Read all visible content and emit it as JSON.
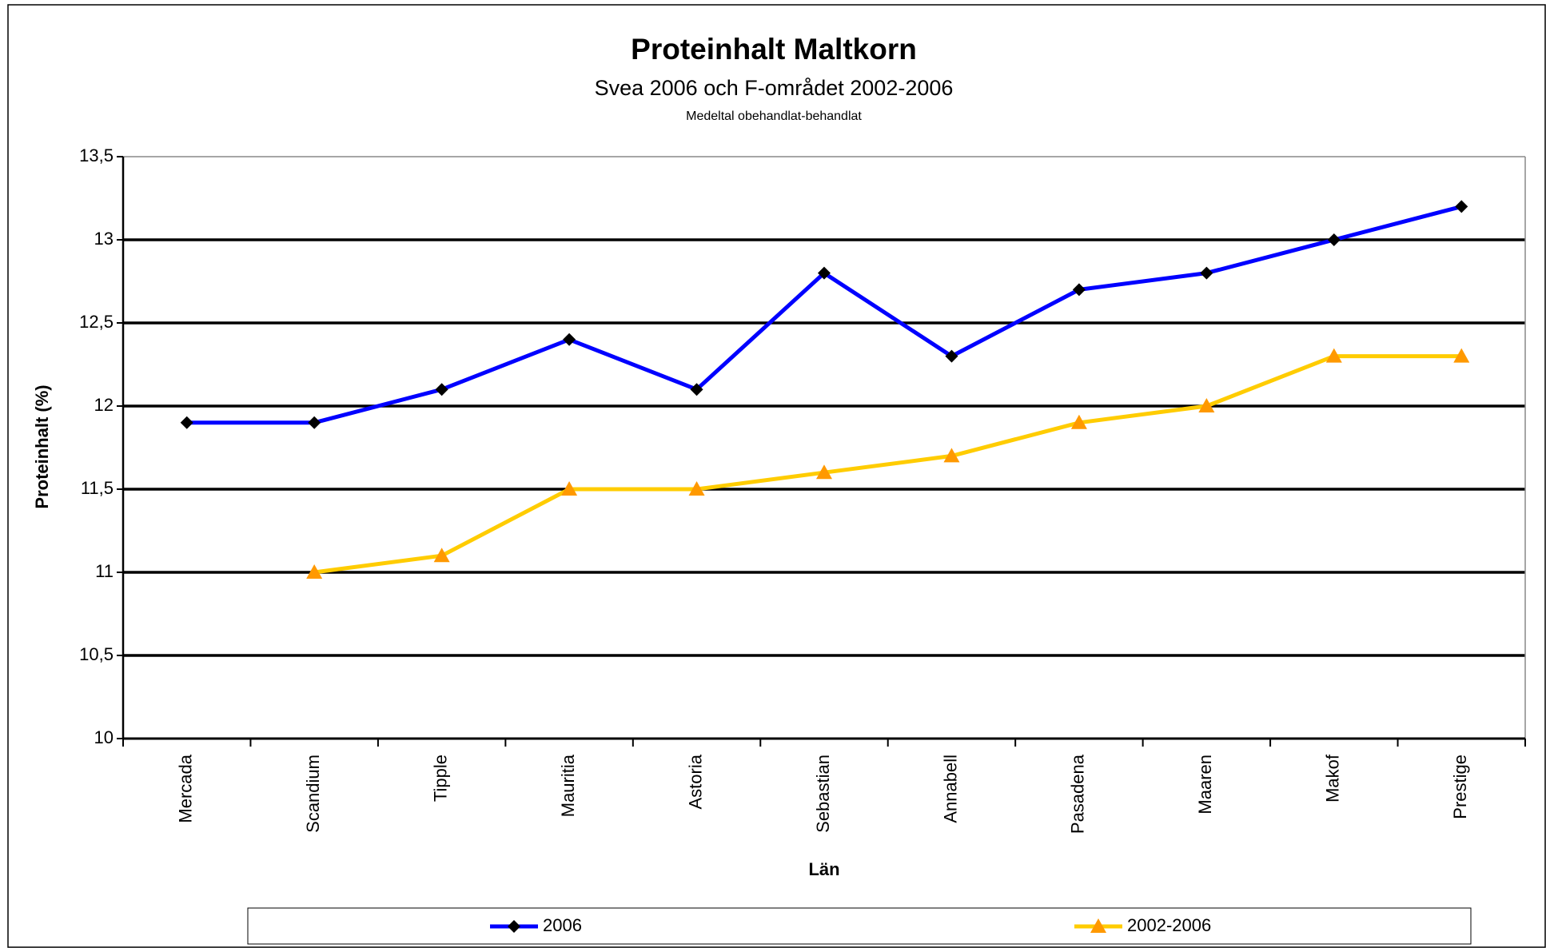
{
  "chart_data": {
    "type": "line",
    "title": "Proteinhalt Maltkorn",
    "subtitle": "Svea 2006 och F-området 2002-2006",
    "note": "Medeltal obehandlat-behandlat",
    "x_label": "Län",
    "y_label": "Proteinhalt (%)",
    "categories": [
      "Mercada",
      "Scandium",
      "Tipple",
      "Mauritia",
      "Astoria",
      "Sebastian",
      "Annabell",
      "Pasadena",
      "Maaren",
      "Makof",
      "Prestige"
    ],
    "series": [
      {
        "name": "2006",
        "color": "#0000ff",
        "marker": "diamond",
        "marker_color": "#000000",
        "values": [
          11.9,
          11.9,
          12.1,
          12.4,
          12.1,
          12.8,
          12.3,
          12.7,
          12.8,
          13.0,
          13.2
        ]
      },
      {
        "name": "2002-2006",
        "color": "#ffcc00",
        "marker": "triangle",
        "marker_color": "#ff9900",
        "values": [
          null,
          11.0,
          11.1,
          11.5,
          11.5,
          11.6,
          11.7,
          11.9,
          12.0,
          12.3,
          12.3
        ]
      }
    ],
    "ylim": [
      10,
      13.5
    ],
    "yticks": [
      10,
      {
        "value": 10.5,
        "label": "10,5"
      },
      11,
      {
        "value": 11.5,
        "label": "11,5"
      },
      12,
      {
        "value": 12.5,
        "label": "12,5"
      },
      13,
      {
        "value": 13.5,
        "label": "13,5"
      }
    ],
    "grid": true,
    "legend": "bottom"
  }
}
